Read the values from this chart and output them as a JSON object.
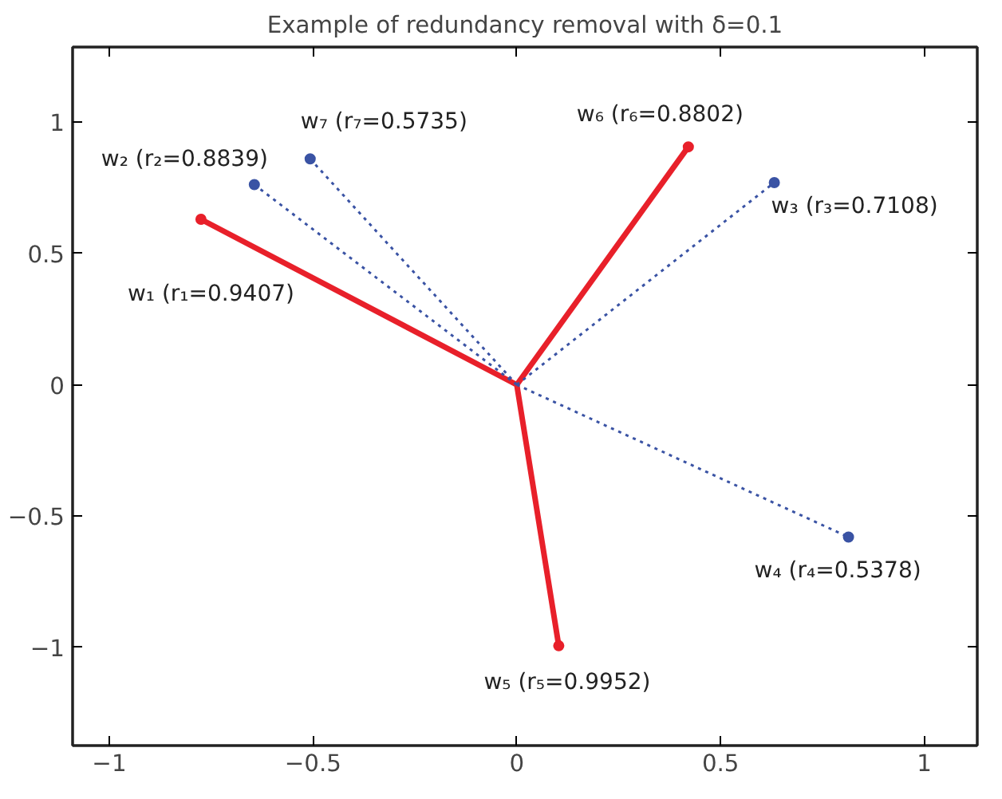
{
  "chart_data": {
    "type": "line",
    "title": "Example of redundancy removal with δ=0.1",
    "xlim": [
      -1.09,
      1.13
    ],
    "ylim": [
      -1.374,
      1.286
    ],
    "xticks": [
      {
        "value": -1,
        "label": "−1"
      },
      {
        "value": -0.5,
        "label": "−0.5"
      },
      0,
      0.5,
      1
    ],
    "yticks": [
      {
        "value": -1,
        "label": "−1"
      },
      {
        "value": -0.5,
        "label": "−0.5"
      },
      0,
      0.5,
      1
    ],
    "grid": false,
    "marker": "circle",
    "series": [
      {
        "color": "#e8202a",
        "line_style": "solid",
        "x": [
          0,
          -0.775,
          null,
          0,
          0.103,
          null,
          0,
          0.421
        ],
        "values": [
          0,
          0.63,
          null,
          0,
          -0.994,
          null,
          0,
          0.906
        ]
      },
      {
        "color": "#3a53a4",
        "line_style": "dotted",
        "x": [
          0,
          -0.644,
          null,
          0,
          0.632,
          null,
          0,
          0.814,
          null,
          0,
          -0.507
        ],
        "values": [
          0,
          0.762,
          null,
          0,
          0.77,
          null,
          0,
          -0.58,
          null,
          0,
          0.86
        ]
      }
    ],
    "annotations": [
      {
        "text": "w₁ (r₁=0.9407)",
        "x": -0.775,
        "y": 0.63
      },
      {
        "text": "w₂ (r₂=0.8839)",
        "x": -0.644,
        "y": 0.762
      },
      {
        "text": "w₃ (r₃=0.7108)",
        "x": 0.632,
        "y": 0.77
      },
      {
        "text": "w₄ (r₄=0.5378)",
        "x": 0.814,
        "y": -0.58
      },
      {
        "text": "w₅ (r₅=0.9952)",
        "x": 0.103,
        "y": -0.994
      },
      {
        "text": "w₆ (r₆=0.8802)",
        "x": 0.421,
        "y": 0.906
      },
      {
        "text": "w₇ (r₇=0.5735)",
        "x": -0.507,
        "y": 0.86
      }
    ]
  }
}
